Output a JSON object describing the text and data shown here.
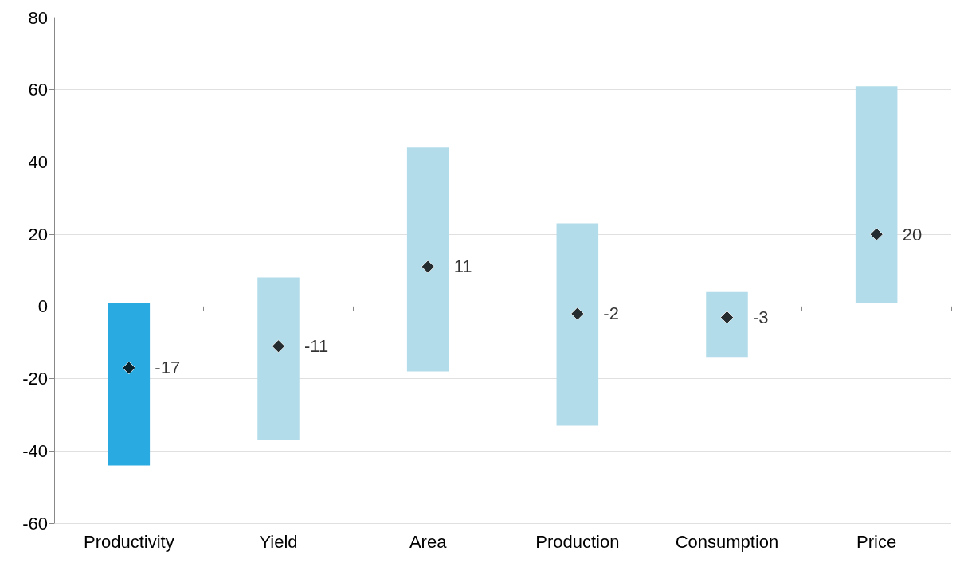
{
  "chart_data": {
    "type": "bar",
    "categories": [
      "Productivity",
      "Yield",
      "Area",
      "Production",
      "Consumption",
      "Price"
    ],
    "series": [
      {
        "base": [
          -44,
          -37,
          -18,
          -33,
          -14,
          1
        ],
        "values": [
          45,
          45,
          62,
          56,
          18,
          60
        ],
        "colors": [
          "#29abe2",
          "#b3dcea",
          "#b3dcea",
          "#b3dcea",
          "#b3dcea",
          "#b3dcea"
        ]
      },
      {
        "type": "scatter",
        "x": [
          "Productivity",
          "Yield",
          "Area",
          "Production",
          "Consumption",
          "Price"
        ],
        "values": [
          -17,
          -11,
          11,
          -2,
          -3,
          20
        ],
        "color": "#000000",
        "marker": "diamond",
        "value_labels": [
          "-17",
          "-11",
          "11",
          "-2",
          "-3",
          "20"
        ]
      }
    ],
    "ylim": [
      -60,
      80
    ],
    "yticks": [
      -60,
      -40,
      -20,
      0,
      20,
      40,
      60,
      80
    ],
    "grid": "y"
  }
}
